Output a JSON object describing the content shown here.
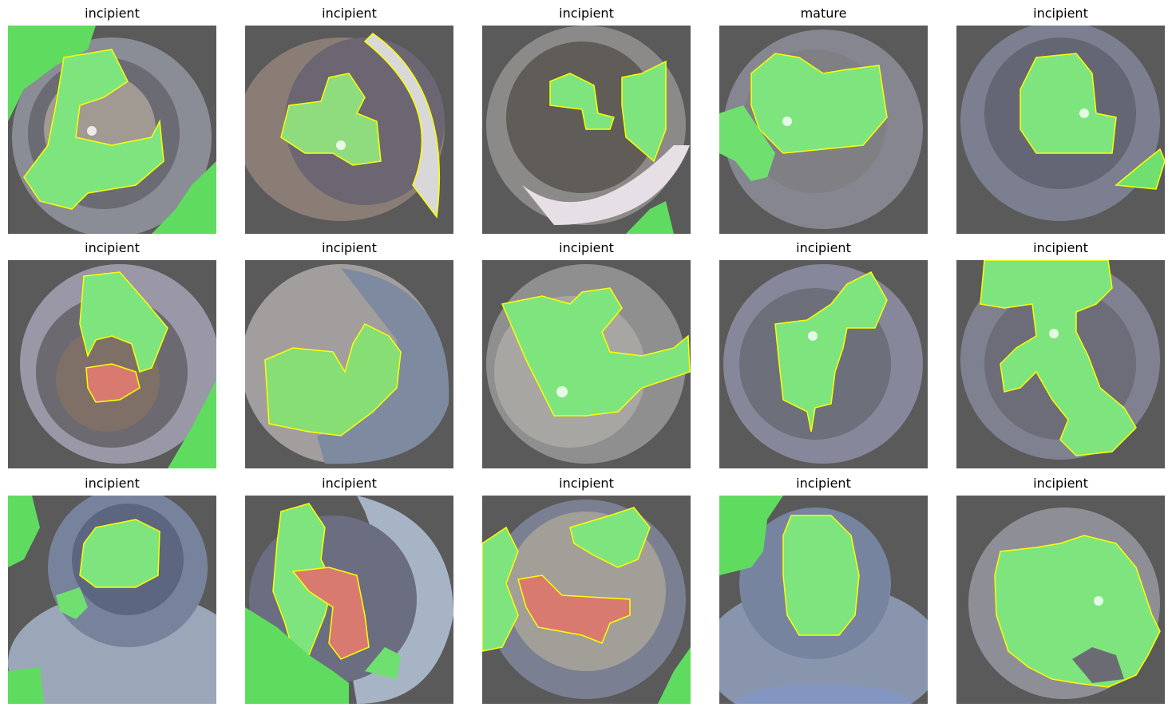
{
  "panels": [
    {
      "title": "incipient",
      "mask": "green"
    },
    {
      "title": "incipient",
      "mask": "green"
    },
    {
      "title": "incipient",
      "mask": "green"
    },
    {
      "title": "mature",
      "mask": "green"
    },
    {
      "title": "incipient",
      "mask": "green"
    },
    {
      "title": "incipient",
      "mask": "green-red"
    },
    {
      "title": "incipient",
      "mask": "green"
    },
    {
      "title": "incipient",
      "mask": "green"
    },
    {
      "title": "incipient",
      "mask": "green"
    },
    {
      "title": "incipient",
      "mask": "green"
    },
    {
      "title": "incipient",
      "mask": "green"
    },
    {
      "title": "incipient",
      "mask": "green-red"
    },
    {
      "title": "incipient",
      "mask": "green-red"
    },
    {
      "title": "incipient",
      "mask": "green"
    },
    {
      "title": "incipient",
      "mask": "green"
    }
  ],
  "colors": {
    "background": "#ffffff",
    "image_bg": "#5a5a5a",
    "mask_green": "#6fe86f",
    "mask_red": "#d97a70",
    "contour": "#ffff00"
  }
}
